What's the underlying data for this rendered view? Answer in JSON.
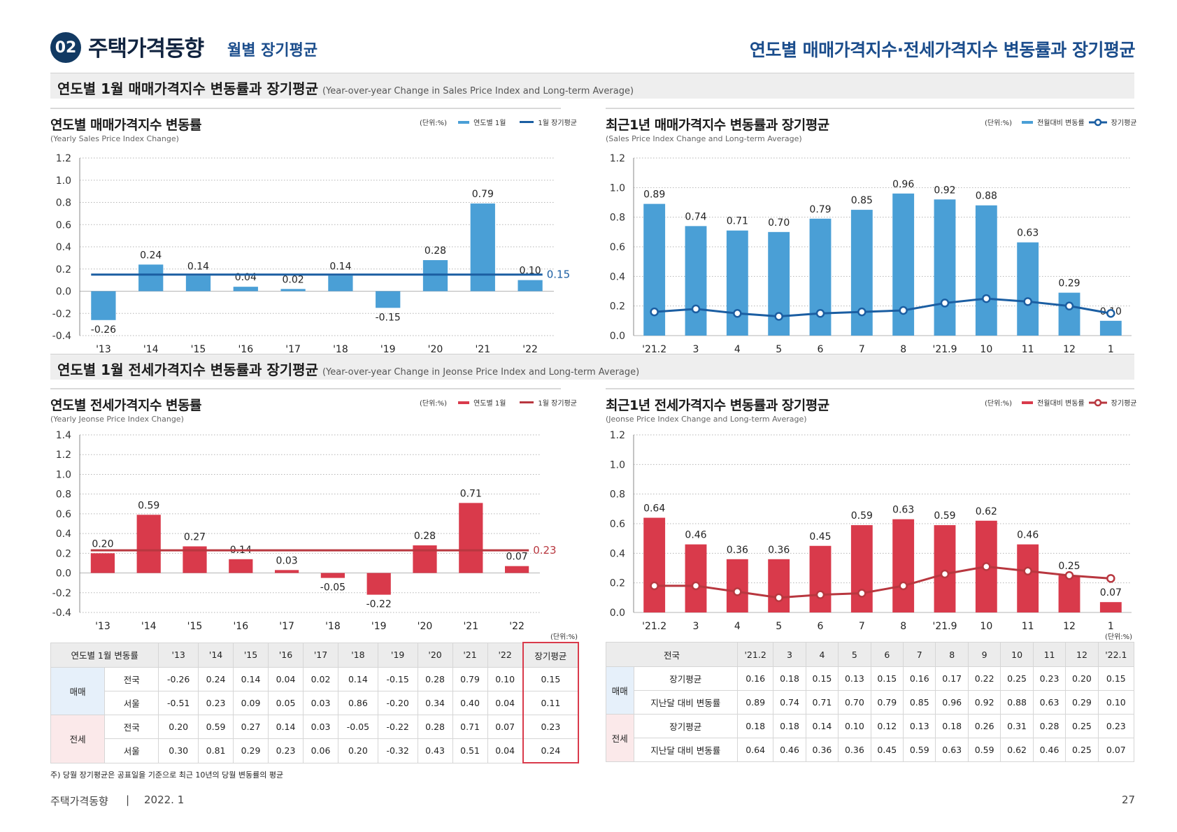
{
  "header": {
    "section_number": "02",
    "section_title": "주택가격동향",
    "section_subtitle": "월별 장기평균",
    "page_title": "연도별 매매가격지수·전세가격지수 변동률과 장기평균"
  },
  "bands": {
    "sales": {
      "title": "연도별 1월 매매가격지수 변동률과 장기평균",
      "subtitle": "(Year-over-year Change in Sales Price Index and Long-term Average)"
    },
    "jeonse": {
      "title": "연도별 1월 전세가격지수 변동률과 장기평균",
      "subtitle": "(Year-over-year Change in Jeonse Price Index and Long-term Average)"
    }
  },
  "panels": {
    "sales_yearly": {
      "title": "연도별 매매가격지수 변동률",
      "subtitle": "(Yearly Sales Price Index Change)",
      "unit": "(단위:%)",
      "legend_bar": "연도별 1월",
      "legend_line": "1월 장기평균"
    },
    "sales_recent": {
      "title": "최근1년 매매가격지수 변동률과 장기평균",
      "subtitle": "(Sales Price Index Change and Long-term Average)",
      "unit": "(단위:%)",
      "legend_bar": "전월대비 변동률",
      "legend_line": "장기평균"
    },
    "jeonse_yearly": {
      "title": "연도별 전세가격지수 변동률",
      "subtitle": "(Yearly Jeonse Price Index Change)",
      "unit": "(단위:%)",
      "legend_bar": "연도별 1월",
      "legend_line": "1월 장기평균"
    },
    "jeonse_recent": {
      "title": "최근1년 전세가격지수 변동률과 장기평균",
      "subtitle": "(Jeonse Price Index Change and Long-term Average)",
      "unit": "(단위:%)",
      "legend_bar": "전월대비 변동률",
      "legend_line": "장기평균"
    }
  },
  "colors": {
    "sales_bar": "#4a9fd6",
    "sales_line": "#1b5ea2",
    "jeonse_bar": "#d93a4b",
    "jeonse_line": "#b8373f"
  },
  "chart_data": [
    {
      "id": "sales_yearly",
      "type": "bar",
      "categories": [
        "'13",
        "'14",
        "'15",
        "'16",
        "'17",
        "'18",
        "'19",
        "'20",
        "'21",
        "'22"
      ],
      "values": [
        -0.26,
        0.24,
        0.14,
        0.04,
        0.02,
        0.14,
        -0.15,
        0.28,
        0.79,
        0.1
      ],
      "labels": [
        "-0.26",
        "0.24",
        "0.14",
        "0.04",
        "0.02",
        "0.14",
        "-0.15",
        "0.28",
        "0.79",
        "0.10"
      ],
      "average": 0.15,
      "average_label": "0.15",
      "yticks": [
        "1.2",
        "1.0",
        "0.8",
        "0.6",
        "0.4",
        "0.2",
        "0.0",
        "-0.2",
        "-0.4"
      ],
      "ylim": [
        -0.4,
        1.2
      ],
      "grid": true
    },
    {
      "id": "sales_recent",
      "type": "bar",
      "categories": [
        "'21.2",
        "3",
        "4",
        "5",
        "6",
        "7",
        "8",
        "'21.9",
        "10",
        "11",
        "12",
        "1"
      ],
      "values": [
        0.89,
        0.74,
        0.71,
        0.7,
        0.79,
        0.85,
        0.96,
        0.92,
        0.88,
        0.63,
        0.29,
        0.1
      ],
      "labels": [
        "0.89",
        "0.74",
        "0.71",
        "0.70",
        "0.79",
        "0.85",
        "0.96",
        "0.92",
        "0.88",
        "0.63",
        "0.29",
        "0.10"
      ],
      "line": [
        0.16,
        0.18,
        0.15,
        0.13,
        0.15,
        0.16,
        0.17,
        0.22,
        0.25,
        0.23,
        0.2,
        0.15
      ],
      "yticks": [
        "1.2",
        "1.0",
        "0.8",
        "0.6",
        "0.4",
        "0.2",
        "0.0"
      ],
      "ylim": [
        0,
        1.2
      ],
      "grid": true
    },
    {
      "id": "jeonse_yearly",
      "type": "bar",
      "categories": [
        "'13",
        "'14",
        "'15",
        "'16",
        "'17",
        "'18",
        "'19",
        "'20",
        "'21",
        "'22"
      ],
      "values": [
        0.2,
        0.59,
        0.27,
        0.14,
        0.03,
        -0.05,
        -0.22,
        0.28,
        0.71,
        0.07
      ],
      "labels": [
        "0.20",
        "0.59",
        "0.27",
        "0.14",
        "0.03",
        "-0.05",
        "-0.22",
        "0.28",
        "0.71",
        "0.07"
      ],
      "average": 0.23,
      "average_label": "0.23",
      "yticks": [
        "1.4",
        "1.2",
        "1.0",
        "0.8",
        "0.6",
        "0.4",
        "0.2",
        "0.0",
        "-0.2",
        "-0.4"
      ],
      "ylim": [
        -0.4,
        1.4
      ],
      "grid": true
    },
    {
      "id": "jeonse_recent",
      "type": "bar",
      "categories": [
        "'21.2",
        "3",
        "4",
        "5",
        "6",
        "7",
        "8",
        "'21.9",
        "10",
        "11",
        "12",
        "1"
      ],
      "values": [
        0.64,
        0.46,
        0.36,
        0.36,
        0.45,
        0.59,
        0.63,
        0.59,
        0.62,
        0.46,
        0.25,
        0.07
      ],
      "labels": [
        "0.64",
        "0.46",
        "0.36",
        "0.36",
        "0.45",
        "0.59",
        "0.63",
        "0.59",
        "0.62",
        "0.46",
        "0.25",
        "0.07"
      ],
      "line": [
        0.18,
        0.18,
        0.14,
        0.1,
        0.12,
        0.13,
        0.18,
        0.26,
        0.31,
        0.28,
        0.25,
        0.23
      ],
      "yticks": [
        "1.2",
        "1.0",
        "0.8",
        "0.6",
        "0.4",
        "0.2",
        "0.0"
      ],
      "ylim": [
        0,
        1.2
      ],
      "grid": true
    }
  ],
  "table_left": {
    "unit": "(단위:%)",
    "header": [
      "연도별 1월 변동률",
      "'13",
      "'14",
      "'15",
      "'16",
      "'17",
      "'18",
      "'19",
      "'20",
      "'21",
      "'22",
      "장기평균"
    ],
    "groups": [
      {
        "name": "매매",
        "rows": [
          {
            "region": "전국",
            "values": [
              "-0.26",
              "0.24",
              "0.14",
              "0.04",
              "0.02",
              "0.14",
              "-0.15",
              "0.28",
              "0.79",
              "0.10",
              "0.15"
            ]
          },
          {
            "region": "서울",
            "values": [
              "-0.51",
              "0.23",
              "0.09",
              "0.05",
              "0.03",
              "0.86",
              "-0.20",
              "0.34",
              "0.40",
              "0.04",
              "0.11"
            ]
          }
        ]
      },
      {
        "name": "전세",
        "rows": [
          {
            "region": "전국",
            "values": [
              "0.20",
              "0.59",
              "0.27",
              "0.14",
              "0.03",
              "-0.05",
              "-0.22",
              "0.28",
              "0.71",
              "0.07",
              "0.23"
            ]
          },
          {
            "region": "서울",
            "values": [
              "0.30",
              "0.81",
              "0.29",
              "0.23",
              "0.06",
              "0.20",
              "-0.32",
              "0.43",
              "0.51",
              "0.04",
              "0.24"
            ]
          }
        ]
      }
    ],
    "note": "주) 당월 장기평균은 공표일을 기준으로 최근 10년의 당월 변동률의 평균"
  },
  "table_right": {
    "unit": "(단위:%)",
    "header": [
      "전국",
      "'21.2",
      "3",
      "4",
      "5",
      "6",
      "7",
      "8",
      "9",
      "10",
      "11",
      "12",
      "'22.1"
    ],
    "groups": [
      {
        "name": "매매",
        "rows": [
          {
            "label": "장기평균",
            "values": [
              "0.16",
              "0.18",
              "0.15",
              "0.13",
              "0.15",
              "0.16",
              "0.17",
              "0.22",
              "0.25",
              "0.23",
              "0.20",
              "0.15"
            ]
          },
          {
            "label": "지난달 대비 변동률",
            "values": [
              "0.89",
              "0.74",
              "0.71",
              "0.70",
              "0.79",
              "0.85",
              "0.96",
              "0.92",
              "0.88",
              "0.63",
              "0.29",
              "0.10"
            ]
          }
        ]
      },
      {
        "name": "전세",
        "rows": [
          {
            "label": "장기평균",
            "values": [
              "0.18",
              "0.18",
              "0.14",
              "0.10",
              "0.12",
              "0.13",
              "0.18",
              "0.26",
              "0.31",
              "0.28",
              "0.25",
              "0.23"
            ]
          },
          {
            "label": "지난달 대비 변동률",
            "values": [
              "0.64",
              "0.46",
              "0.36",
              "0.36",
              "0.45",
              "0.59",
              "0.63",
              "0.59",
              "0.62",
              "0.46",
              "0.25",
              "0.07"
            ]
          }
        ]
      }
    ]
  },
  "footer": {
    "publication": "주택가격동향",
    "separator": "|",
    "date": "2022. 1",
    "page_number": "27"
  }
}
